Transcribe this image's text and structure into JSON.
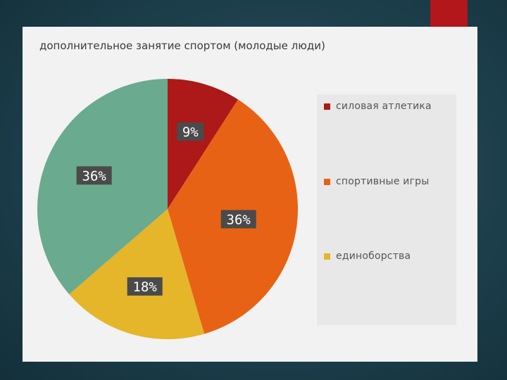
{
  "chart_data": {
    "type": "pie",
    "title": "дополнительное занятие спортом (молодые люди)",
    "categories": [
      "силовая атлетика",
      "спортивные игры",
      "единоборства",
      ""
    ],
    "values": [
      9,
      36,
      18,
      36
    ],
    "labels": [
      "9%",
      "36%",
      "18%",
      "36%"
    ],
    "colors": [
      "#ad1818",
      "#e86215",
      "#e5b52a",
      "#6aaa8e"
    ],
    "legend_position": "right",
    "start_angle_deg": 0,
    "direction": "clockwise"
  },
  "legend": [
    {
      "label": "силовая атлетика",
      "color": "#ad1818"
    },
    {
      "label": "спортивные игры",
      "color": "#e86215"
    },
    {
      "label": "единоборства",
      "color": "#e5b52a"
    }
  ],
  "theme": {
    "accent": "#b3161b",
    "card_bg": "#f2f2f2",
    "label_bg": "#4a4a4a"
  }
}
